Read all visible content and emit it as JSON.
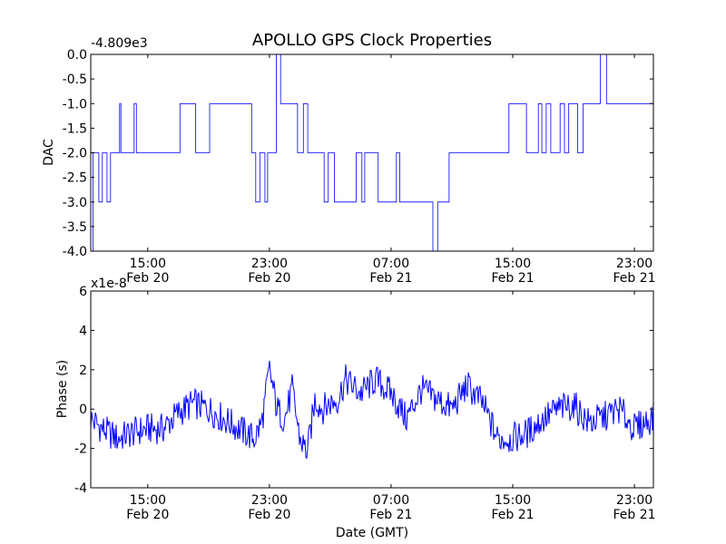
{
  "chart_data": [
    {
      "type": "line",
      "title": "APOLLO GPS Clock Properties",
      "ylabel": "DAC",
      "xlabel": "",
      "offset_text": "-4.809e3",
      "ylim": [
        -4.0,
        0.0
      ],
      "xlim": [
        "Feb 20 11:15",
        "Feb 22 00:15"
      ],
      "grid": false,
      "x_ticks": [
        {
          "time": "15:00",
          "date": "Feb 20"
        },
        {
          "time": "23:00",
          "date": "Feb 20"
        },
        {
          "time": "07:00",
          "date": "Feb 21"
        },
        {
          "time": "15:00",
          "date": "Feb 21"
        },
        {
          "time": "23:00",
          "date": "Feb 21"
        }
      ],
      "y_ticks": [
        "0.0",
        "-0.5",
        "-1.0",
        "-1.5",
        "-2.0",
        "-2.5",
        "-3.0",
        "-3.5",
        "-4.0"
      ],
      "color": "#0000ff",
      "series": [
        {
          "x": [
            "Feb 20 11:15",
            "Feb 20 11:24",
            "Feb 20 11:33",
            "Feb 20 11:47",
            "Feb 20 12:01",
            "Feb 20 12:19",
            "Feb 20 12:33",
            "Feb 20 12:42",
            "Feb 20 12:51",
            "Feb 20 13:09",
            "Feb 20 13:14",
            "Feb 20 13:27",
            "Feb 20 13:32",
            "Feb 20 14:06",
            "Feb 20 14:15",
            "Feb 20 15:00",
            "Feb 20 15:51",
            "Feb 20 16:18",
            "Feb 20 16:27",
            "Feb 20 16:36",
            "Feb 20 16:44",
            "Feb 20 16:58",
            "Feb 20 17:07",
            "Feb 20 18:09",
            "Feb 20 19:04",
            "Feb 20 20:04",
            "Feb 20 21:50",
            "Feb 20 22:06",
            "Feb 20 22:22",
            "Feb 20 22:31",
            "Feb 20 22:42",
            "Feb 20 22:53",
            "Feb 20 23:00",
            "Feb 20 23:27",
            "Feb 20 23:44",
            "Feb 21 00:06",
            "Feb 21 00:31",
            "Feb 21 00:51",
            "Feb 21 01:14",
            "Feb 21 01:31",
            "Feb 21 01:53",
            "Feb 21 02:04",
            "Feb 21 02:19",
            "Feb 21 02:36",
            "Feb 21 02:52",
            "Feb 21 03:16",
            "Feb 21 03:46",
            "Feb 21 04:18",
            "Feb 21 04:42",
            "Feb 21 05:05",
            "Feb 21 05:16",
            "Feb 21 05:34",
            "Feb 21 05:51",
            "Feb 21 06:09",
            "Feb 21 06:22",
            "Feb 21 06:31",
            "Feb 21 06:40",
            "Feb 21 06:54",
            "Feb 21 07:05",
            "Feb 21 07:21",
            "Feb 21 07:34",
            "Feb 21 07:50",
            "Feb 21 08:06",
            "Feb 21 08:39",
            "Feb 21 09:00",
            "Feb 21 09:45",
            "Feb 21 10:04",
            "Feb 21 10:24",
            "Feb 21 10:49",
            "Feb 21 11:15",
            "Feb 21 12:00",
            "Feb 21 13:00",
            "Feb 21 14:45",
            "Feb 21 15:54",
            "Feb 21 16:16",
            "Feb 21 16:41",
            "Feb 21 16:55",
            "Feb 21 17:12",
            "Feb 21 17:30",
            "Feb 21 17:44",
            "Feb 21 18:07",
            "Feb 21 18:24",
            "Feb 21 18:41",
            "Feb 21 19:16",
            "Feb 21 19:38",
            "Feb 21 20:00",
            "Feb 21 20:45",
            "Feb 21 21:10",
            "Feb 21 21:23",
            "Feb 21 21:40",
            "Feb 21 22:00",
            "Feb 21 22:09",
            "Feb 21 22:31",
            "Feb 21 22:54",
            "Feb 21 23:23",
            "Feb 22 00:15"
          ],
          "y": [
            -4.0,
            -2.0,
            -2.0,
            -3.0,
            -2.0,
            -3.0,
            -2.0,
            -2.0,
            -2.0,
            -1.0,
            -2.0,
            -2.0,
            -2.0,
            -1.0,
            -2.0,
            -2.0,
            -2.0,
            -2.0,
            -2.0,
            -2.0,
            -2.0,
            -2.0,
            -1.0,
            -2.0,
            -1.0,
            -1.0,
            -2.0,
            -3.0,
            -2.0,
            -2.0,
            -3.0,
            -2.0,
            -2.0,
            0.0,
            -1.0,
            -1.0,
            -1.0,
            -2.0,
            -1.0,
            -2.0,
            -2.0,
            -2.0,
            -2.0,
            -3.0,
            -2.0,
            -3.0,
            -3.0,
            -3.0,
            -2.0,
            -3.0,
            -2.0,
            -2.0,
            -2.0,
            -3.0,
            -3.0,
            -3.0,
            -3.0,
            -3.0,
            -3.0,
            -2.0,
            -3.0,
            -3.0,
            -3.0,
            -3.0,
            -3.0,
            -4.0,
            -3.0,
            -3.0,
            -2.0,
            -2.0,
            -2.0,
            -2.0,
            -1.0,
            -2.0,
            -2.0,
            -1.0,
            -2.0,
            -1.0,
            -2.0,
            -2.0,
            -1.0,
            -2.0,
            -1.0,
            -2.0,
            -1.0,
            -1.0,
            0.0,
            -1.0,
            -1.0,
            -1.0,
            -1.0,
            -1.0,
            -1.0,
            -1.0,
            -1.0,
            -1.0
          ]
        }
      ]
    },
    {
      "type": "line",
      "title": "",
      "ylabel": "Phase (s)",
      "xlabel": "Date (GMT)",
      "offset_text": "x1e-8",
      "ylim": [
        -4,
        6
      ],
      "xlim": [
        "Feb 20 11:15",
        "Feb 22 00:15"
      ],
      "grid": false,
      "x_ticks": [
        {
          "time": "15:00",
          "date": "Feb 20"
        },
        {
          "time": "23:00",
          "date": "Feb 20"
        },
        {
          "time": "07:00",
          "date": "Feb 21"
        },
        {
          "time": "15:00",
          "date": "Feb 21"
        },
        {
          "time": "23:00",
          "date": "Feb 21"
        }
      ],
      "y_ticks": [
        "6",
        "4",
        "2",
        "0",
        "-2",
        "-4"
      ],
      "color": "#0000ff",
      "series": [
        {
          "x": [
            "Feb 20 11:15",
            "Feb 20 12:00",
            "Feb 20 13:00",
            "Feb 20 14:00",
            "Feb 20 15:00",
            "Feb 20 16:00",
            "Feb 20 17:00",
            "Feb 20 18:00",
            "Feb 20 19:00",
            "Feb 20 20:00",
            "Feb 20 21:00",
            "Feb 20 22:00",
            "Feb 20 22:30",
            "Feb 20 23:00",
            "Feb 20 23:30",
            "Feb 21 00:00",
            "Feb 21 00:30",
            "Feb 21 01:00",
            "Feb 21 01:30",
            "Feb 21 02:00",
            "Feb 21 02:30",
            "Feb 21 03:00",
            "Feb 21 03:30",
            "Feb 21 04:00",
            "Feb 21 05:00",
            "Feb 21 06:00",
            "Feb 21 07:00",
            "Feb 21 08:00",
            "Feb 21 09:00",
            "Feb 21 10:00",
            "Feb 21 11:00",
            "Feb 21 12:00",
            "Feb 21 13:00",
            "Feb 21 14:00",
            "Feb 21 15:00",
            "Feb 21 16:00",
            "Feb 21 17:00",
            "Feb 21 18:00",
            "Feb 21 19:00",
            "Feb 21 20:00",
            "Feb 21 21:00",
            "Feb 21 22:00",
            "Feb 21 23:00",
            "Feb 22 00:15"
          ],
          "y": [
            -0.5,
            -1.0,
            -1.5,
            -1.2,
            -1.0,
            -1.0,
            -0.2,
            0.3,
            0.0,
            -0.5,
            -1.0,
            -1.5,
            -0.7,
            2.0,
            0.0,
            -0.5,
            1.0,
            -1.5,
            -2.2,
            0.5,
            0.0,
            0.3,
            0.5,
            1.5,
            0.8,
            1.5,
            0.8,
            -0.5,
            1.0,
            0.5,
            0.0,
            1.2,
            0.3,
            -1.5,
            -1.5,
            -1.2,
            -0.5,
            0.0,
            0.2,
            -0.7,
            -0.4,
            0.0,
            -1.0,
            -0.4
          ]
        }
      ]
    }
  ]
}
